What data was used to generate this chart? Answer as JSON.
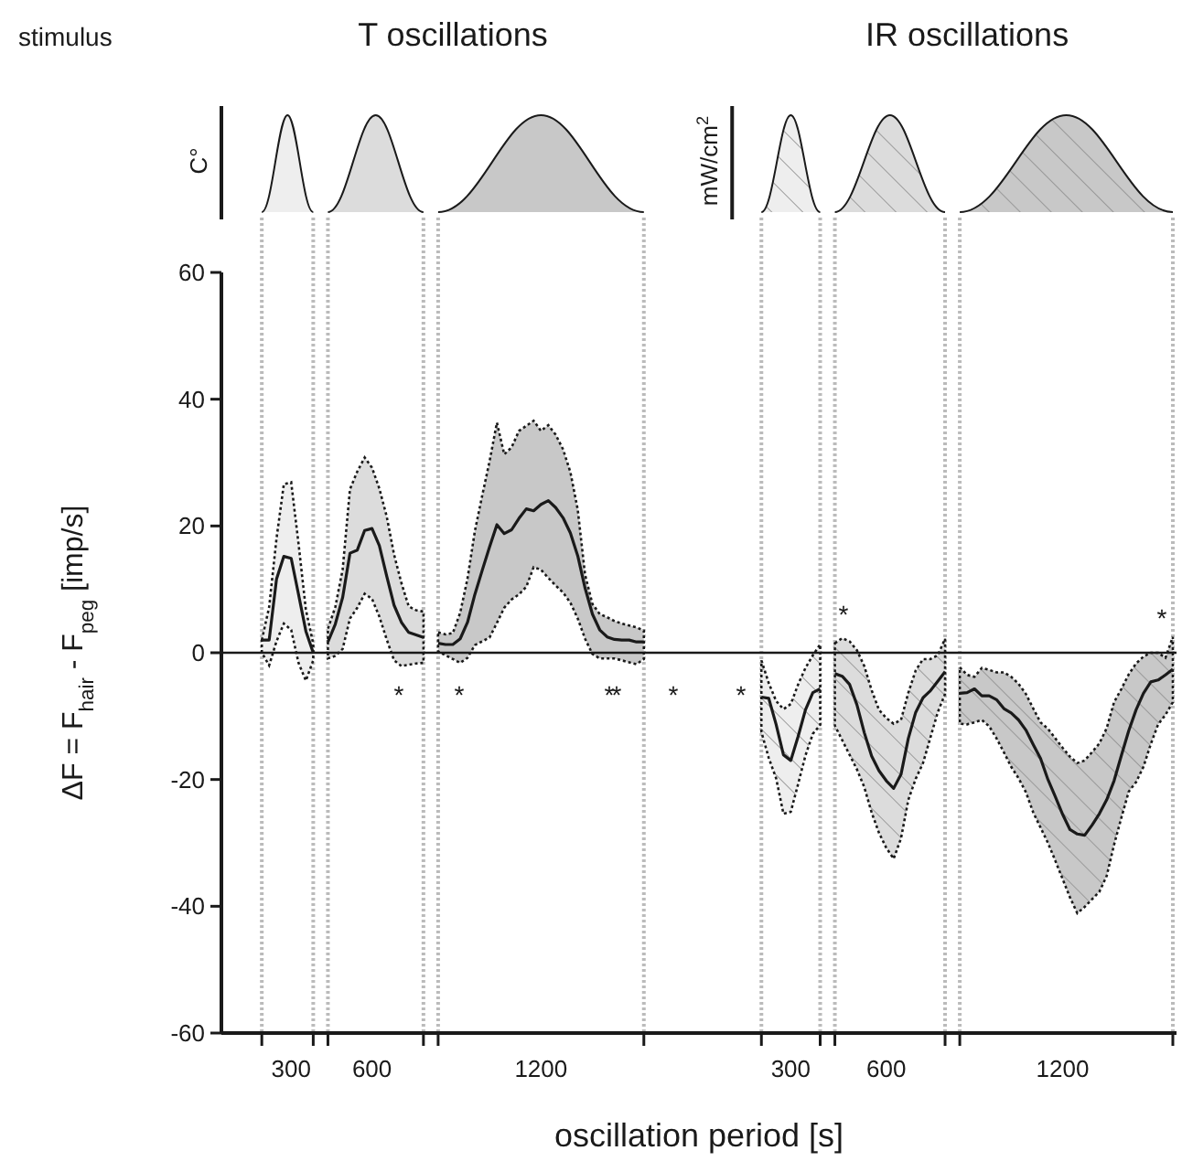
{
  "chart_data": {
    "type": "line",
    "xlabel": "oscillation period [s]",
    "ylabel": "ΔF = F$_{hair}$ - F$_{peg}$  [imp/s]",
    "annotations": [
      "stimulus",
      "T oscillations",
      "IR oscillations",
      "C°",
      "mW/cm$^{2}$",
      "*",
      "*",
      "*",
      "*",
      "*",
      "*",
      "*",
      "*"
    ],
    "categories": [
      null,
      null,
      null,
      null,
      null,
      null,
      null,
      null,
      null,
      "300",
      null,
      null,
      null,
      null,
      null,
      null,
      null,
      null,
      null,
      null,
      "600",
      null,
      null,
      null,
      null,
      null,
      null,
      null,
      null,
      null,
      null,
      null,
      null,
      null,
      null,
      null,
      null,
      null,
      null,
      null,
      null,
      null,
      null,
      "1200",
      null,
      null,
      null,
      null,
      null,
      null,
      null,
      null,
      null,
      null,
      null,
      null,
      null,
      null,
      null,
      null,
      null,
      null,
      null,
      null,
      null,
      null,
      null,
      null,
      null,
      null,
      null,
      null,
      null,
      null,
      null,
      null,
      null,
      "300",
      null,
      null,
      null,
      null,
      null,
      null,
      null,
      null,
      null,
      null,
      null,
      null,
      "600",
      null,
      null,
      null,
      null,
      null,
      null,
      null,
      null,
      null,
      null,
      null,
      null,
      null,
      null,
      null,
      null,
      null,
      null,
      null,
      null,
      null,
      null,
      null,
      "1200",
      null,
      null,
      null,
      null,
      null,
      null,
      null,
      null,
      null,
      null,
      null,
      null,
      null,
      null,
      null
    ],
    "ylim": [
      -60,
      60
    ],
    "yticks": [
      -60,
      -40,
      -20,
      0,
      20,
      40,
      60
    ],
    "ref_lines": [
      {
        "axis": "y",
        "value": 0,
        "label": null,
        "color": "#1a1a1a",
        "line_style": "solid"
      }
    ],
    "series": [
      {
        "color": "#1a1a1a",
        "values": [
          null,
          null,
          null,
          null,
          null,
          2,
          2,
          11.6,
          15.2,
          14.9,
          9.2,
          3.4,
          0,
          null,
          1.7,
          4.5,
          8.7,
          15.7,
          16.2,
          19.3,
          19.6,
          16.9,
          12.1,
          7.5,
          4.8,
          3.2,
          2.8,
          2.4,
          null,
          1.5,
          1.3,
          1.3,
          2.2,
          4.8,
          9.2,
          13,
          16.7,
          20.2,
          18.8,
          19.4,
          21.2,
          22.7,
          22.4,
          23.4,
          24,
          22.9,
          21.3,
          18.9,
          15.3,
          10.2,
          6.1,
          3.6,
          2.5,
          2.1,
          2,
          2,
          1.7,
          1.7,
          null,
          null,
          null,
          null,
          null,
          null,
          null,
          null,
          null,
          null,
          null,
          null,
          null,
          null,
          null,
          -7,
          -7.2,
          -11.3,
          -16.1,
          -17,
          -13.2,
          -9,
          -6.3,
          -5.7,
          null,
          -3.3,
          -3.7,
          -5,
          -8.2,
          -12.6,
          -16.3,
          -18.6,
          -20.2,
          -21.4,
          -19.2,
          -13.5,
          -9.4,
          -7.1,
          -6,
          -4.5,
          -3,
          null,
          -6.4,
          -6.3,
          -5.7,
          -6.8,
          -6.8,
          -7.4,
          -8.8,
          -9.5,
          -10.6,
          -12.2,
          -14.5,
          -16.7,
          -20,
          -22.7,
          -25.5,
          -27.9,
          -28.6,
          -28.8,
          -27.2,
          -25.4,
          -23.2,
          -20.2,
          -16.2,
          -12.3,
          -9,
          -6.4,
          -4.6,
          -4.3,
          -3.5,
          -2.6
        ],
        "upper": [
          null,
          null,
          null,
          null,
          null,
          2,
          7.2,
          18,
          26.6,
          26.9,
          17.2,
          6.8,
          1.4,
          null,
          3.8,
          7.2,
          13.1,
          25.8,
          28.6,
          30.8,
          29.2,
          25.9,
          21.5,
          15.5,
          11,
          7.3,
          6.7,
          6.5,
          null,
          3.2,
          2.9,
          3.1,
          6.3,
          11.7,
          19.2,
          24.8,
          30.2,
          36.3,
          31.3,
          32.4,
          35,
          35.8,
          36.6,
          35,
          35.9,
          34.4,
          32.1,
          28.5,
          22.6,
          12.3,
          7.7,
          6.1,
          5.6,
          5,
          4.6,
          4.3,
          4,
          3.5,
          null,
          null,
          null,
          null,
          null,
          null,
          null,
          null,
          null,
          null,
          null,
          null,
          null,
          null,
          null,
          -1.2,
          -4.8,
          -7.6,
          -8.9,
          -8.1,
          -5,
          -2.4,
          -0.4,
          1.3,
          null,
          1.5,
          2.3,
          1.8,
          0.4,
          -2.1,
          -5.9,
          -9,
          -10.3,
          -11.2,
          -10.6,
          -6.3,
          -2.8,
          -1,
          -1,
          -0.4,
          2.2,
          null,
          -2.3,
          -3.5,
          -3.8,
          -2.4,
          -2.7,
          -3.1,
          -3.1,
          -3.8,
          -4.9,
          -6.5,
          -8.8,
          -11,
          -12,
          -13.5,
          -15,
          -16.4,
          -17.4,
          -17,
          -15.7,
          -14.3,
          -11.9,
          -7.8,
          -5.7,
          -3.4,
          -1.7,
          -0.6,
          0,
          0,
          -0.8,
          2.5
        ],
        "lower": [
          null,
          null,
          null,
          null,
          null,
          0,
          -2,
          1.8,
          4.6,
          3.6,
          -1.6,
          -4.4,
          -1.2,
          null,
          -0.9,
          -0.5,
          0.6,
          5.4,
          7.1,
          9.3,
          8.5,
          5.7,
          2.1,
          -1.2,
          -2.1,
          -1.9,
          -1.7,
          -1.6,
          null,
          0.2,
          -0.4,
          -1,
          -1.6,
          -0.8,
          1.2,
          1.8,
          2.4,
          4.7,
          7.1,
          8.4,
          9.2,
          10.4,
          13.5,
          13.1,
          11.8,
          10.6,
          9.5,
          7.9,
          5.4,
          2.2,
          -0.2,
          -0.9,
          -0.9,
          -0.9,
          -1.2,
          -1.5,
          -1.8,
          -1,
          null,
          null,
          null,
          null,
          null,
          null,
          null,
          null,
          null,
          null,
          null,
          null,
          null,
          null,
          null,
          -12.5,
          -16.6,
          -19.8,
          -25.4,
          -25.1,
          -20.7,
          -16.2,
          -12.8,
          -11.4,
          null,
          -11.5,
          -13.8,
          -16.1,
          -18.4,
          -21.2,
          -25.2,
          -28.4,
          -30.8,
          -32.5,
          -29.3,
          -23.2,
          -19.9,
          -17.4,
          -13.4,
          -9.4,
          -6.5,
          null,
          -11.2,
          -11.3,
          -11,
          -10.6,
          -11.6,
          -13.5,
          -15.7,
          -18,
          -19.8,
          -22,
          -25.2,
          -27.6,
          -30,
          -32.8,
          -35.7,
          -38.6,
          -41.1,
          -40.1,
          -38.9,
          -37.7,
          -35.2,
          -30.3,
          -26,
          -21.9,
          -20.4,
          -18,
          -14.4,
          -11.3,
          -9.8,
          -7.8
        ]
      }
    ]
  }
}
